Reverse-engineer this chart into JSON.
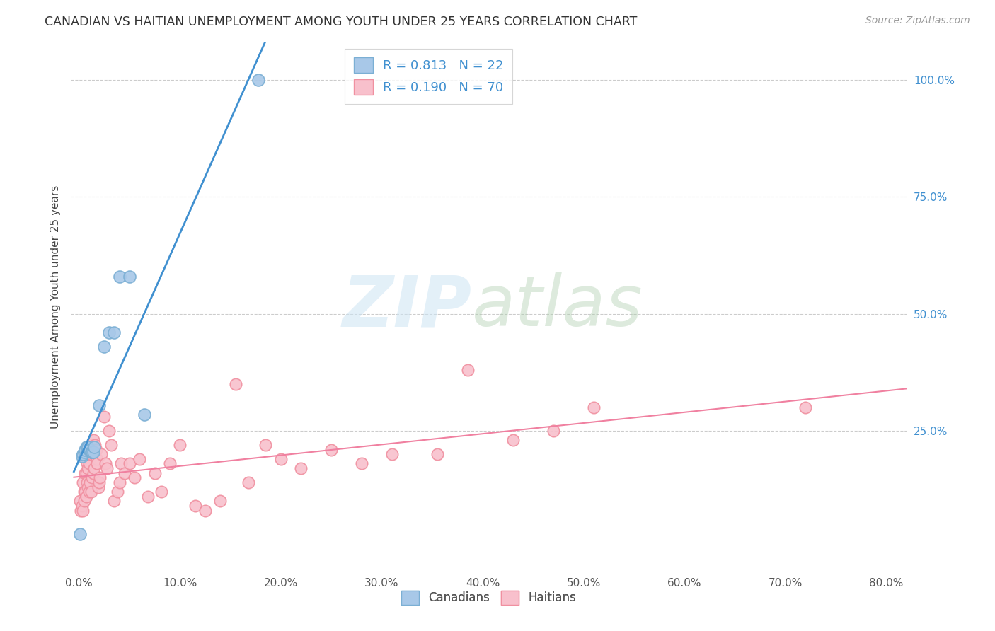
{
  "title": "CANADIAN VS HAITIAN UNEMPLOYMENT AMONG YOUTH UNDER 25 YEARS CORRELATION CHART",
  "source": "Source: ZipAtlas.com",
  "ylabel": "Unemployment Among Youth under 25 years",
  "ytick_labels": [
    "100.0%",
    "75.0%",
    "50.0%",
    "25.0%"
  ],
  "ytick_vals": [
    1.0,
    0.75,
    0.5,
    0.25
  ],
  "xtick_vals": [
    0.0,
    0.1,
    0.2,
    0.3,
    0.4,
    0.5,
    0.6,
    0.7,
    0.8
  ],
  "xlim": [
    -0.008,
    0.82
  ],
  "ylim": [
    -0.05,
    1.08
  ],
  "canadian_color": "#a8c8e8",
  "canadian_edge_color": "#7bafd4",
  "haitian_color": "#f8c0cc",
  "haitian_edge_color": "#f090a0",
  "canadian_line_color": "#4090d0",
  "haitian_line_color": "#f080a0",
  "legend_text_color": "#4090d0",
  "r_canadian": 0.813,
  "n_canadian": 22,
  "r_haitian": 0.19,
  "n_haitian": 70,
  "can_x": [
    0.001,
    0.003,
    0.004,
    0.005,
    0.006,
    0.007,
    0.008,
    0.009,
    0.01,
    0.011,
    0.012,
    0.013,
    0.014,
    0.015,
    0.02,
    0.025,
    0.03,
    0.035,
    0.04,
    0.05,
    0.065,
    0.178
  ],
  "can_y": [
    0.03,
    0.195,
    0.2,
    0.205,
    0.21,
    0.215,
    0.215,
    0.215,
    0.21,
    0.21,
    0.205,
    0.205,
    0.205,
    0.215,
    0.305,
    0.43,
    0.46,
    0.46,
    0.58,
    0.58,
    0.285,
    1.0
  ],
  "hai_x": [
    0.001,
    0.002,
    0.003,
    0.004,
    0.004,
    0.005,
    0.005,
    0.006,
    0.006,
    0.007,
    0.007,
    0.008,
    0.008,
    0.009,
    0.009,
    0.01,
    0.01,
    0.011,
    0.011,
    0.012,
    0.012,
    0.013,
    0.013,
    0.014,
    0.014,
    0.015,
    0.015,
    0.016,
    0.017,
    0.018,
    0.018,
    0.019,
    0.02,
    0.021,
    0.022,
    0.025,
    0.026,
    0.028,
    0.03,
    0.032,
    0.035,
    0.038,
    0.04,
    0.042,
    0.045,
    0.05,
    0.055,
    0.06,
    0.068,
    0.075,
    0.082,
    0.09,
    0.1,
    0.115,
    0.125,
    0.14,
    0.155,
    0.168,
    0.185,
    0.2,
    0.22,
    0.25,
    0.28,
    0.31,
    0.355,
    0.385,
    0.43,
    0.47,
    0.51,
    0.72
  ],
  "hai_y": [
    0.1,
    0.08,
    0.09,
    0.08,
    0.14,
    0.1,
    0.12,
    0.12,
    0.16,
    0.11,
    0.16,
    0.14,
    0.18,
    0.13,
    0.17,
    0.12,
    0.18,
    0.14,
    0.2,
    0.12,
    0.2,
    0.15,
    0.22,
    0.16,
    0.23,
    0.2,
    0.17,
    0.22,
    0.21,
    0.19,
    0.18,
    0.13,
    0.14,
    0.15,
    0.2,
    0.28,
    0.18,
    0.17,
    0.25,
    0.22,
    0.1,
    0.12,
    0.14,
    0.18,
    0.16,
    0.18,
    0.15,
    0.19,
    0.11,
    0.16,
    0.12,
    0.18,
    0.22,
    0.09,
    0.08,
    0.1,
    0.35,
    0.14,
    0.22,
    0.19,
    0.17,
    0.21,
    0.18,
    0.2,
    0.2,
    0.38,
    0.23,
    0.25,
    0.3,
    0.3
  ]
}
